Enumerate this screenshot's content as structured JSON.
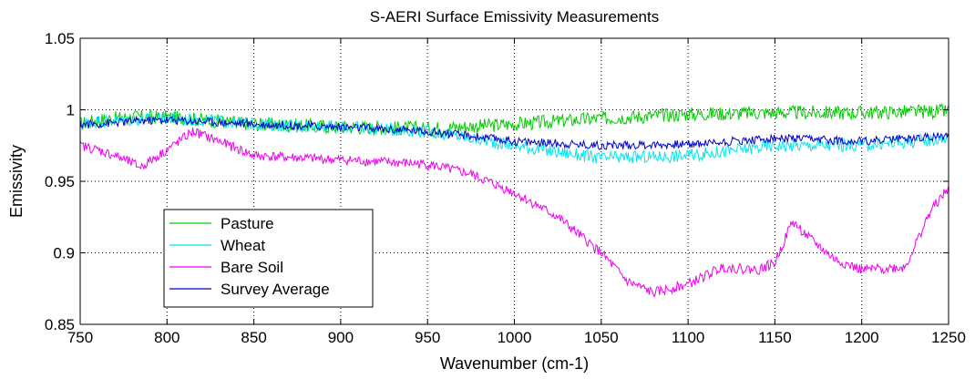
{
  "chart_data": {
    "type": "line",
    "title": "S-AERI Surface Emissivity Measurements",
    "xlabel": "Wavenumber (cm-1)",
    "ylabel": "Emissivity",
    "xlim": [
      750,
      1250
    ],
    "ylim": [
      0.85,
      1.05
    ],
    "xticks": [
      750,
      800,
      850,
      900,
      950,
      1000,
      1050,
      1100,
      1150,
      1200,
      1250
    ],
    "yticks": [
      0.85,
      0.9,
      0.95,
      1.0,
      1.05
    ],
    "xtick_labels": [
      "750",
      "800",
      "850",
      "900",
      "950",
      "1000",
      "1050",
      "1100",
      "1150",
      "1200",
      "1250"
    ],
    "ytick_labels": [
      "0.85",
      "0.9",
      "0.95",
      "1",
      "1.05"
    ],
    "grid": true,
    "legend_position": "bottom-left",
    "series": [
      {
        "name": "Pasture",
        "color": "#00cc00",
        "x": [
          750,
          760,
          780,
          800,
          820,
          850,
          900,
          950,
          1000,
          1050,
          1100,
          1150,
          1200,
          1250
        ],
        "y": [
          0.99,
          0.993,
          0.995,
          0.995,
          0.993,
          0.99,
          0.988,
          0.987,
          0.99,
          0.994,
          0.997,
          0.998,
          0.998,
          0.999
        ]
      },
      {
        "name": "Wheat",
        "color": "#00e5ee",
        "x": [
          750,
          760,
          780,
          800,
          820,
          850,
          900,
          950,
          1000,
          1050,
          1100,
          1150,
          1200,
          1250
        ],
        "y": [
          0.99,
          0.992,
          0.993,
          0.994,
          0.993,
          0.99,
          0.988,
          0.985,
          0.975,
          0.966,
          0.968,
          0.975,
          0.975,
          0.98
        ]
      },
      {
        "name": "Bare Soil",
        "color": "#ee00ee",
        "x": [
          750,
          760,
          770,
          785,
          800,
          815,
          830,
          850,
          900,
          950,
          975,
          1000,
          1025,
          1050,
          1065,
          1080,
          1100,
          1120,
          1140,
          1150,
          1160,
          1170,
          1185,
          1200,
          1225,
          1240,
          1250
        ],
        "y": [
          0.975,
          0.972,
          0.968,
          0.96,
          0.972,
          0.985,
          0.978,
          0.968,
          0.965,
          0.962,
          0.955,
          0.942,
          0.925,
          0.9,
          0.88,
          0.872,
          0.878,
          0.89,
          0.888,
          0.893,
          0.922,
          0.91,
          0.895,
          0.888,
          0.89,
          0.93,
          0.945
        ]
      },
      {
        "name": "Survey Average",
        "color": "#0000cc",
        "x": [
          750,
          760,
          780,
          800,
          820,
          850,
          900,
          950,
          1000,
          1050,
          1100,
          1150,
          1200,
          1250
        ],
        "y": [
          0.99,
          0.99,
          0.992,
          0.993,
          0.992,
          0.99,
          0.988,
          0.985,
          0.978,
          0.975,
          0.976,
          0.98,
          0.978,
          0.982
        ]
      }
    ]
  }
}
